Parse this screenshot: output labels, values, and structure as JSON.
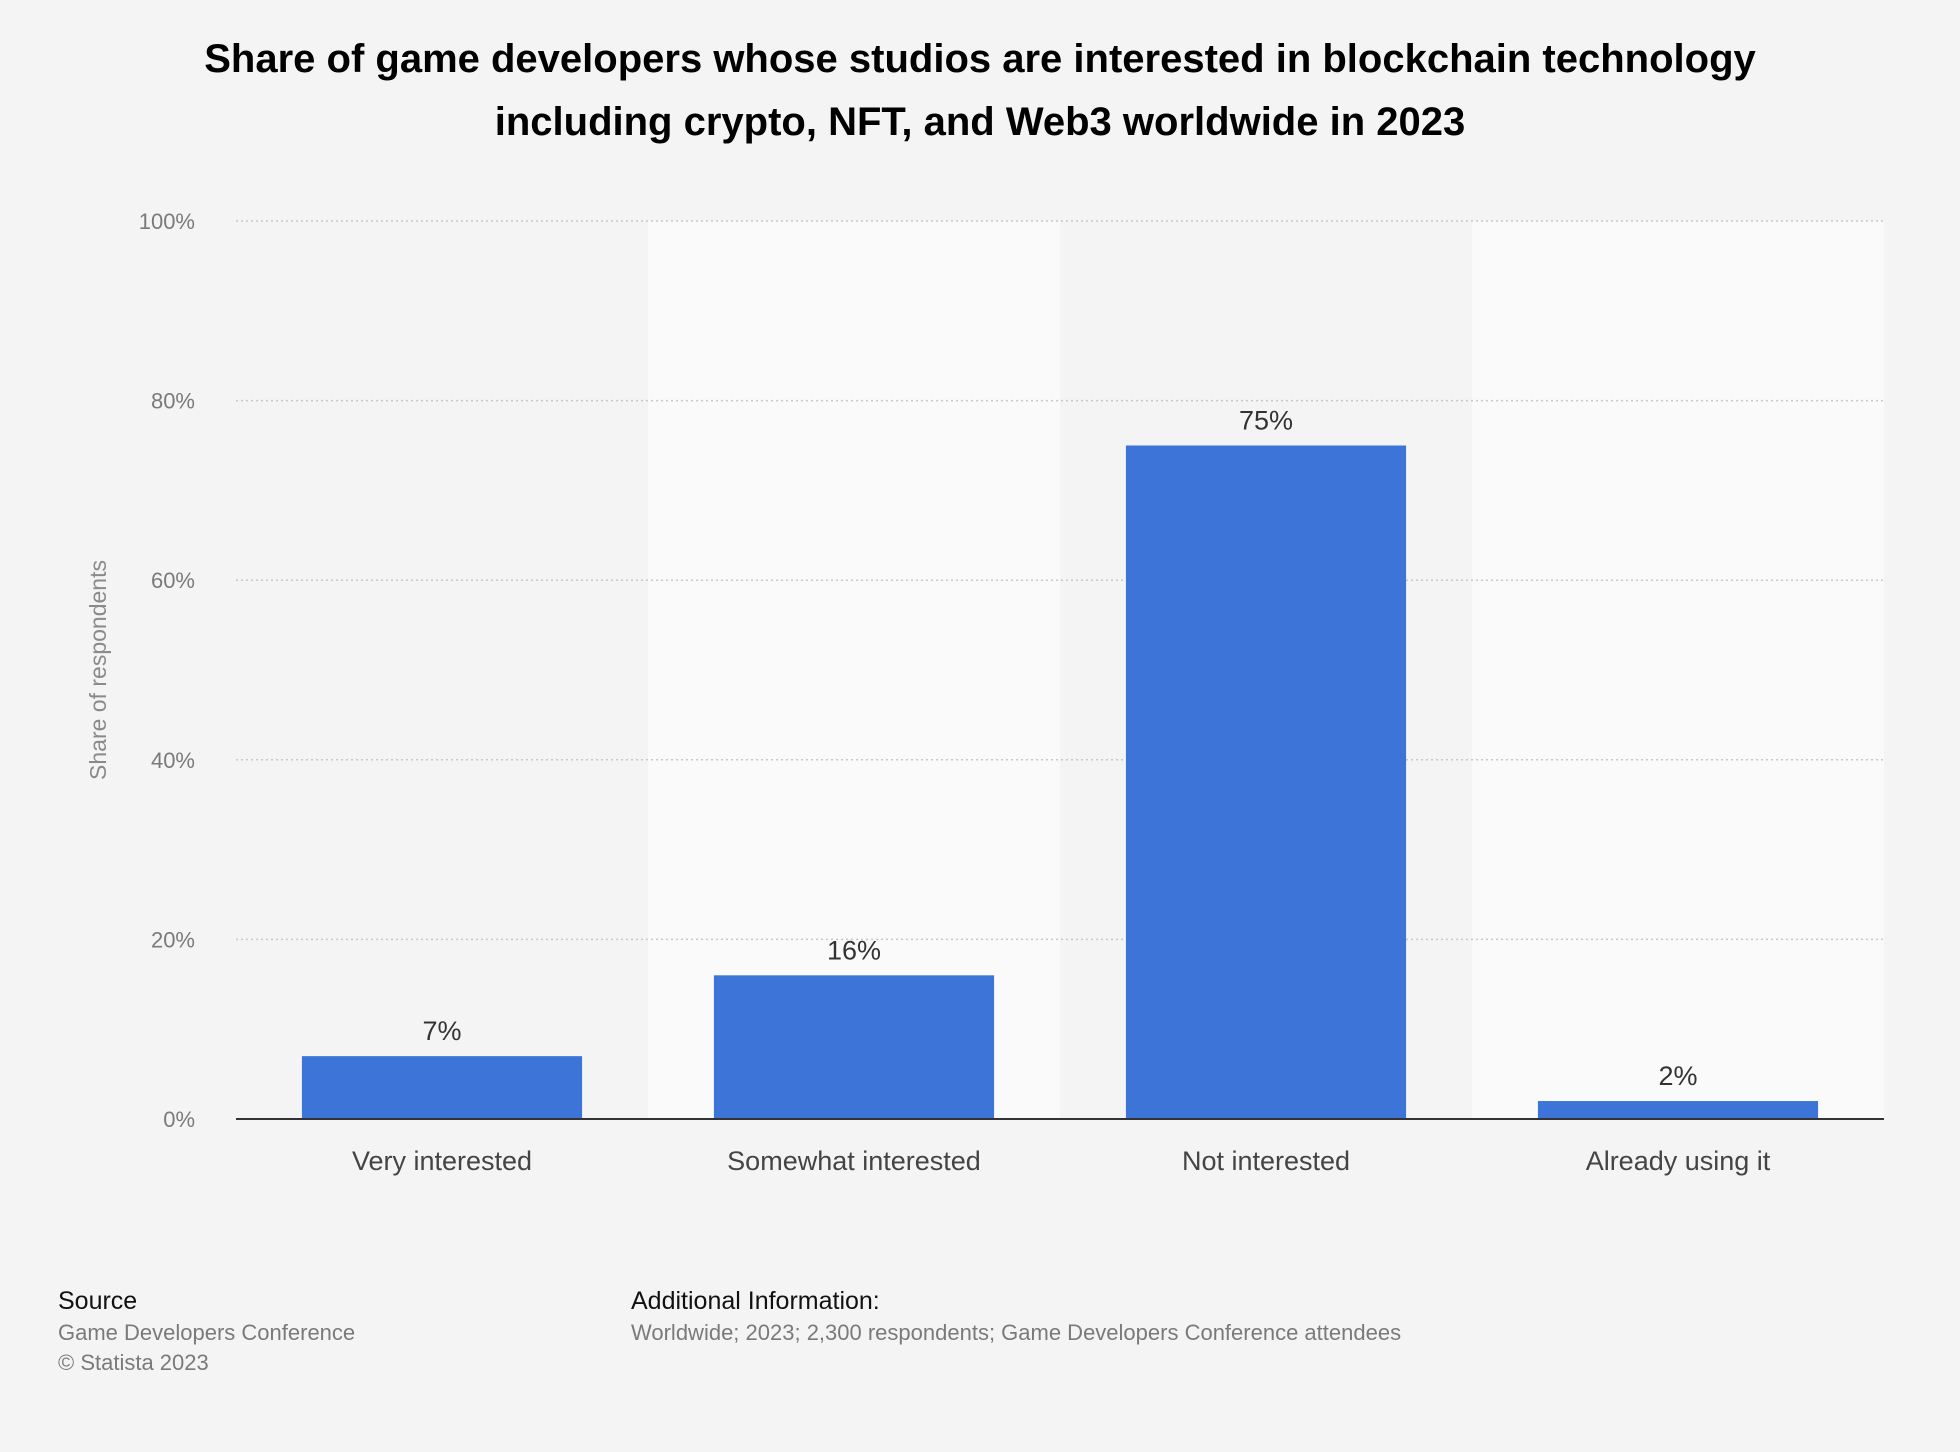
{
  "chart_data": {
    "type": "bar",
    "title": "Share of game developers whose studios are interested in blockchain technology including crypto, NFT, and Web3 worldwide in 2023",
    "ylabel": "Share of respondents",
    "xlabel": "",
    "categories": [
      "Very interested",
      "Somewhat interested",
      "Not interested",
      "Already using it"
    ],
    "values": [
      7,
      16,
      75,
      2
    ],
    "value_labels": [
      "7%",
      "16%",
      "75%",
      "2%"
    ],
    "ylim": [
      0,
      100
    ],
    "yticks": [
      0,
      20,
      40,
      60,
      80,
      100
    ],
    "ytick_labels": [
      "0%",
      "20%",
      "40%",
      "60%",
      "80%",
      "100%"
    ],
    "grid": true,
    "bar_color": "#3c74d8"
  },
  "footer": {
    "source_heading": "Source",
    "source_line1": "Game Developers Conference",
    "source_line2": "© Statista 2023",
    "info_heading": "Additional Information:",
    "info_text": "Worldwide; 2023; 2,300 respondents; Game Developers Conference attendees"
  }
}
